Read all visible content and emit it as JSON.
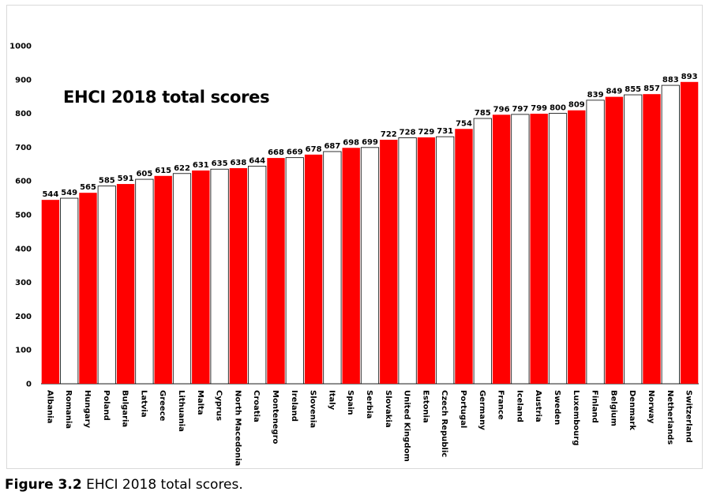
{
  "caption": {
    "label": "Figure 3.2",
    "text": "EHCI 2018 total scores."
  },
  "chart_data": {
    "type": "bar",
    "title": "EHCI 2018 total scores",
    "xlabel": "",
    "ylabel": "",
    "ylim": [
      0,
      1000
    ],
    "yticks": [
      0,
      100,
      200,
      300,
      400,
      500,
      600,
      700,
      800,
      900,
      1000
    ],
    "grid": false,
    "legend": "none",
    "colors": {
      "red": "#ff0000",
      "white": "#ffffff",
      "outline": "#000000"
    },
    "categories": [
      "Albania",
      "Romania",
      "Hungary",
      "Poland",
      "Bulgaria",
      "Latvia",
      "Greece",
      "Lithuania",
      "Malta",
      "Cyprus",
      "North Macedonia",
      "Croatia",
      "Montenegro",
      "Ireland",
      "Slovenia",
      "Italy",
      "Spain",
      "Serbia",
      "Slovakia",
      "United Kingdom",
      "Estonia",
      "Czech Republic",
      "Portugal",
      "Germany",
      "France",
      "Iceland",
      "Austria",
      "Sweden",
      "Luxembourg",
      "Finland",
      "Belgium",
      "Denmark",
      "Norway",
      "Netherlands",
      "Switzerland"
    ],
    "values": [
      544,
      549,
      565,
      585,
      591,
      605,
      615,
      622,
      631,
      635,
      638,
      644,
      668,
      669,
      678,
      687,
      698,
      699,
      722,
      728,
      729,
      731,
      754,
      785,
      796,
      797,
      799,
      800,
      809,
      839,
      849,
      855,
      857,
      883,
      893
    ],
    "bar_colors": [
      "red",
      "white",
      "red",
      "white",
      "red",
      "white",
      "red",
      "white",
      "red",
      "white",
      "red",
      "white",
      "red",
      "white",
      "red",
      "white",
      "red",
      "white",
      "red",
      "white",
      "red",
      "white",
      "red",
      "white",
      "red",
      "white",
      "red",
      "white",
      "red",
      "white",
      "red",
      "white",
      "red",
      "white",
      "red"
    ]
  }
}
